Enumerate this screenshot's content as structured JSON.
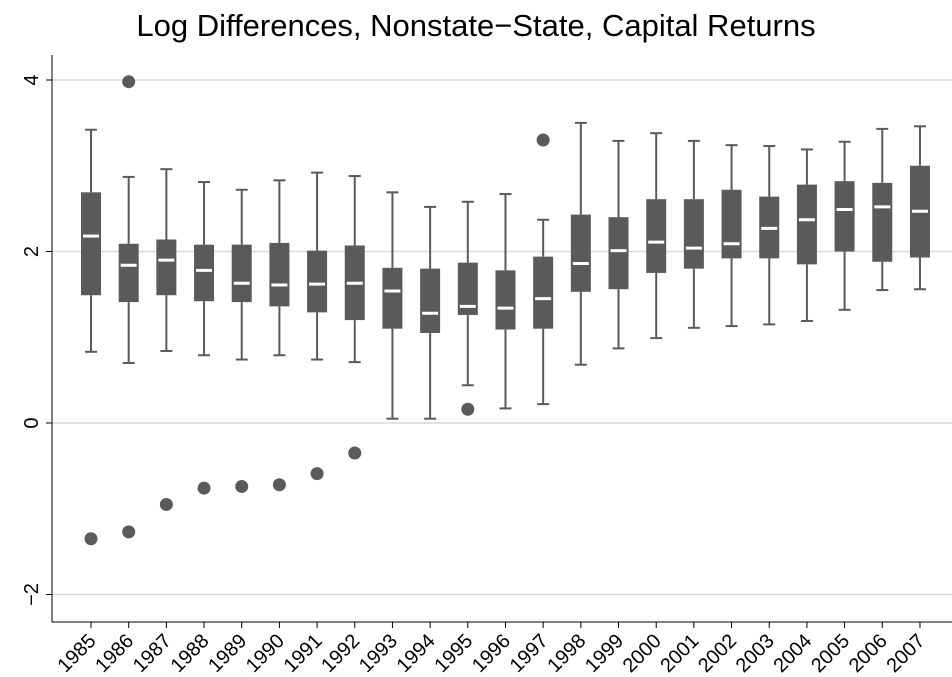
{
  "chart_data": {
    "type": "boxplot",
    "title": "Log Differences, Nonstate−State, Capital Returns",
    "xlabel": "",
    "ylabel": "",
    "ylim": [
      -2.4,
      4.2
    ],
    "y_ticks": [
      4,
      2,
      0,
      -2
    ],
    "y_tick_labels": [
      "4",
      "2",
      "0",
      "−2"
    ],
    "grid": true,
    "legend": "none",
    "box_color": "#5a5a5a",
    "median_color": "#ffffff",
    "gridline_color": "#d9d9d9",
    "categories": [
      "1985",
      "1986",
      "1987",
      "1988",
      "1989",
      "1990",
      "1991",
      "1992",
      "1993",
      "1994",
      "1995",
      "1996",
      "1997",
      "1998",
      "1999",
      "2000",
      "2001",
      "2002",
      "2003",
      "2004",
      "2005",
      "2006",
      "2007"
    ],
    "boxes": [
      {
        "year": "1985",
        "whisker_low": 0.83,
        "q1": 1.49,
        "median": 2.18,
        "q3": 2.69,
        "whisker_high": 3.42,
        "outliers": [
          -1.35
        ]
      },
      {
        "year": "1986",
        "whisker_low": 0.7,
        "q1": 1.41,
        "median": 1.84,
        "q3": 2.09,
        "whisker_high": 2.87,
        "outliers": [
          3.98,
          -1.27
        ]
      },
      {
        "year": "1987",
        "whisker_low": 0.84,
        "q1": 1.49,
        "median": 1.9,
        "q3": 2.14,
        "whisker_high": 2.96,
        "outliers": [
          -0.95
        ]
      },
      {
        "year": "1988",
        "whisker_low": 0.79,
        "q1": 1.42,
        "median": 1.78,
        "q3": 2.08,
        "whisker_high": 2.81,
        "outliers": [
          -0.76
        ]
      },
      {
        "year": "1989",
        "whisker_low": 0.74,
        "q1": 1.41,
        "median": 1.63,
        "q3": 2.08,
        "whisker_high": 2.72,
        "outliers": [
          -0.74
        ]
      },
      {
        "year": "1990",
        "whisker_low": 0.79,
        "q1": 1.36,
        "median": 1.61,
        "q3": 2.1,
        "whisker_high": 2.83,
        "outliers": [
          -0.72
        ]
      },
      {
        "year": "1991",
        "whisker_low": 0.74,
        "q1": 1.29,
        "median": 1.62,
        "q3": 2.01,
        "whisker_high": 2.92,
        "outliers": [
          -0.59
        ]
      },
      {
        "year": "1992",
        "whisker_low": 0.71,
        "q1": 1.2,
        "median": 1.63,
        "q3": 2.07,
        "whisker_high": 2.88,
        "outliers": [
          -0.35
        ]
      },
      {
        "year": "1993",
        "whisker_low": 0.05,
        "q1": 1.1,
        "median": 1.54,
        "q3": 1.81,
        "whisker_high": 2.69,
        "outliers": []
      },
      {
        "year": "1994",
        "whisker_low": 0.05,
        "q1": 1.05,
        "median": 1.28,
        "q3": 1.8,
        "whisker_high": 2.52,
        "outliers": []
      },
      {
        "year": "1995",
        "whisker_low": 0.44,
        "q1": 1.26,
        "median": 1.36,
        "q3": 1.87,
        "whisker_high": 2.58,
        "outliers": [
          0.16
        ]
      },
      {
        "year": "1996",
        "whisker_low": 0.17,
        "q1": 1.09,
        "median": 1.34,
        "q3": 1.78,
        "whisker_high": 2.67,
        "outliers": []
      },
      {
        "year": "1997",
        "whisker_low": 0.22,
        "q1": 1.1,
        "median": 1.45,
        "q3": 1.94,
        "whisker_high": 2.37,
        "outliers": [
          3.3
        ]
      },
      {
        "year": "1998",
        "whisker_low": 0.68,
        "q1": 1.53,
        "median": 1.86,
        "q3": 2.43,
        "whisker_high": 3.5,
        "outliers": []
      },
      {
        "year": "1999",
        "whisker_low": 0.87,
        "q1": 1.56,
        "median": 2.01,
        "q3": 2.4,
        "whisker_high": 3.29,
        "outliers": []
      },
      {
        "year": "2000",
        "whisker_low": 0.99,
        "q1": 1.75,
        "median": 2.11,
        "q3": 2.61,
        "whisker_high": 3.38,
        "outliers": []
      },
      {
        "year": "2001",
        "whisker_low": 1.11,
        "q1": 1.8,
        "median": 2.04,
        "q3": 2.61,
        "whisker_high": 3.29,
        "outliers": []
      },
      {
        "year": "2002",
        "whisker_low": 1.13,
        "q1": 1.92,
        "median": 2.09,
        "q3": 2.72,
        "whisker_high": 3.24,
        "outliers": []
      },
      {
        "year": "2003",
        "whisker_low": 1.15,
        "q1": 1.92,
        "median": 2.27,
        "q3": 2.64,
        "whisker_high": 3.23,
        "outliers": []
      },
      {
        "year": "2004",
        "whisker_low": 1.19,
        "q1": 1.85,
        "median": 2.37,
        "q3": 2.78,
        "whisker_high": 3.19,
        "outliers": []
      },
      {
        "year": "2005",
        "whisker_low": 1.32,
        "q1": 2.0,
        "median": 2.49,
        "q3": 2.82,
        "whisker_high": 3.28,
        "outliers": []
      },
      {
        "year": "2006",
        "whisker_low": 1.55,
        "q1": 1.88,
        "median": 2.52,
        "q3": 2.8,
        "whisker_high": 3.43,
        "outliers": []
      },
      {
        "year": "2007",
        "whisker_low": 1.56,
        "q1": 1.93,
        "median": 2.47,
        "q3": 3.0,
        "whisker_high": 3.46,
        "outliers": []
      }
    ]
  }
}
